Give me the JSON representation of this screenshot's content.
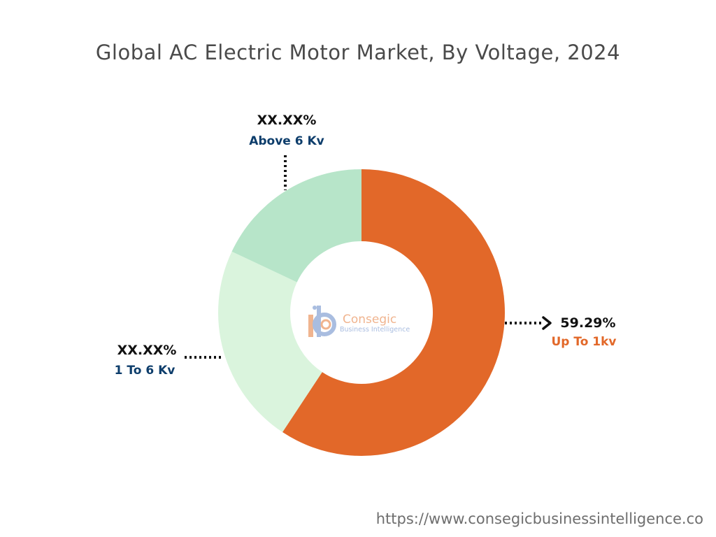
{
  "title": "Global AC Electric Motor Market, By Voltage, 2024",
  "footer_url": "https://www.consegicbusinessintelligence.co",
  "logo": {
    "name": "Consegic",
    "tagline": "Business Intelligence"
  },
  "chart_data": {
    "type": "pie",
    "donut": true,
    "title": "Global AC Electric Motor Market, By Voltage, 2024",
    "series": [
      {
        "label": "Up To 1kv",
        "value_label": "59.29%",
        "value": 59.29,
        "color": "#e26829",
        "label_color": "#e26829"
      },
      {
        "label": "1 To 6 Kv",
        "value_label": "XX.XX%",
        "value": 22.71,
        "color": "#daf4dd",
        "label_color": "#0d3d6b"
      },
      {
        "label": "Above 6 Kv",
        "value_label": "XX.XX%",
        "value": 18.0,
        "color": "#b7e5c9",
        "label_color": "#0d3d6b"
      }
    ]
  }
}
